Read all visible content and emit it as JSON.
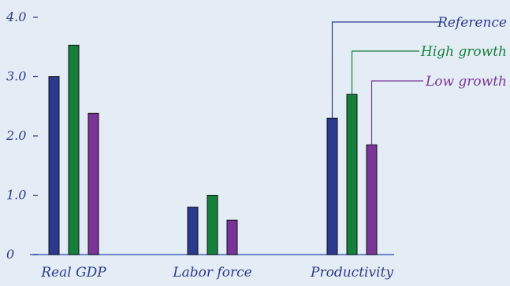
{
  "colors": {
    "background": "#e4ecf5",
    "axis_text": "#2b3a8f",
    "baseline": "#3f61b8"
  },
  "chart_data": {
    "type": "bar",
    "title": "",
    "xlabel": "",
    "ylabel": "",
    "categories": [
      "Real GDP",
      "Labor force",
      "Productivity"
    ],
    "ylim": [
      0,
      4.0
    ],
    "y_ticks": [
      "0",
      "1.0",
      "2.0",
      "3.0",
      "4.0"
    ],
    "grid": false,
    "legend_placement": "top-right",
    "series": [
      {
        "name": "Reference",
        "color": "#2b3a8f",
        "values": [
          3.0,
          0.8,
          2.3
        ]
      },
      {
        "name": "High growth",
        "color": "#14803c",
        "values": [
          3.53,
          1.0,
          2.7
        ]
      },
      {
        "name": "Low growth",
        "color": "#7a3497",
        "values": [
          2.38,
          0.58,
          1.85
        ]
      }
    ]
  }
}
